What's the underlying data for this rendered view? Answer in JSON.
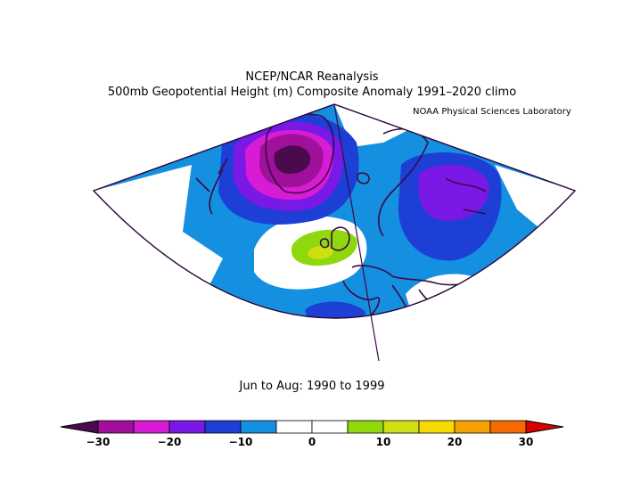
{
  "title": "NCEP/NCAR Reanalysis",
  "subtitle": "500mb Geopotential Height (m) Composite Anomaly 1991–2020 climo",
  "credit": "NOAA Physical Sciences Laboratory",
  "period": "Jun to Aug: 1990 to 1999",
  "colorbar": {
    "ticks": [
      "−30",
      "−20",
      "−10",
      "0",
      "10",
      "20",
      "30"
    ],
    "colors": [
      "#4b0a4e",
      "#a0109b",
      "#d81cd6",
      "#7a18e6",
      "#1d3fd6",
      "#158fe0",
      "#ffffff",
      "#ffffff",
      "#8fd80e",
      "#cfe012",
      "#f6da00",
      "#f4a000",
      "#f46a00",
      "#d80000"
    ]
  }
}
